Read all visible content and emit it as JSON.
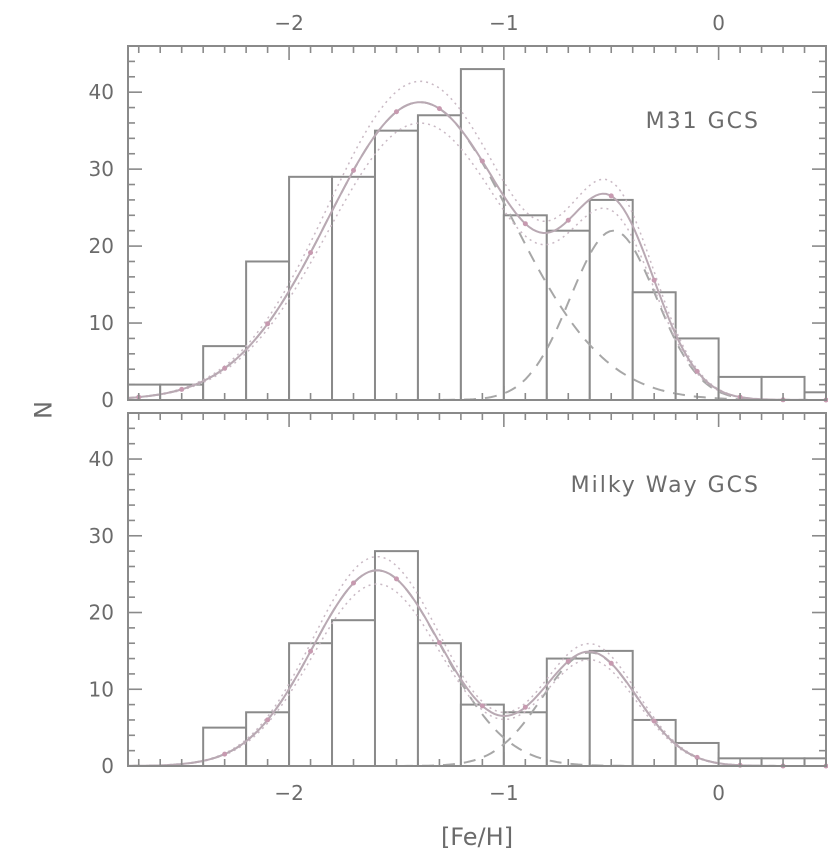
{
  "chart_data": {
    "type": "histogram",
    "xlabel": "[Fe/H]",
    "ylabel": "N",
    "xlim": [
      -2.75,
      0.5
    ],
    "ylim": [
      0,
      46
    ],
    "x_ticks": [
      -2,
      -1,
      0
    ],
    "x_tick_labels": [
      "−2",
      "−1",
      "0"
    ],
    "y_ticks": [
      0,
      10,
      20,
      30,
      40
    ],
    "y_tick_labels": [
      "0",
      "10",
      "20",
      "30",
      "40"
    ],
    "bin_width": 0.2,
    "grid": false,
    "panels": [
      {
        "label": "M31 GCS",
        "bins": [
          {
            "x": -2.7,
            "n": 2
          },
          {
            "x": -2.5,
            "n": 2
          },
          {
            "x": -2.3,
            "n": 7
          },
          {
            "x": -2.1,
            "n": 18
          },
          {
            "x": -1.9,
            "n": 29
          },
          {
            "x": -1.7,
            "n": 29
          },
          {
            "x": -1.5,
            "n": 35
          },
          {
            "x": -1.3,
            "n": 37
          },
          {
            "x": -1.1,
            "n": 43
          },
          {
            "x": -0.9,
            "n": 24
          },
          {
            "x": -0.7,
            "n": 22
          },
          {
            "x": -0.5,
            "n": 26
          },
          {
            "x": -0.3,
            "n": 14
          },
          {
            "x": -0.1,
            "n": 8
          },
          {
            "x": 0.1,
            "n": 3
          },
          {
            "x": 0.3,
            "n": 3
          },
          {
            "x": 0.5,
            "n": 1
          }
        ],
        "components": [
          {
            "mu": -1.39,
            "sigma": 0.43,
            "amp": 38.7
          },
          {
            "mu": -0.49,
            "sigma": 0.2,
            "amp": 22
          }
        ]
      },
      {
        "label": "Milky Way GCS",
        "bins": [
          {
            "x": -2.3,
            "n": 5
          },
          {
            "x": -2.1,
            "n": 7
          },
          {
            "x": -1.9,
            "n": 16
          },
          {
            "x": -1.7,
            "n": 19
          },
          {
            "x": -1.5,
            "n": 28
          },
          {
            "x": -1.3,
            "n": 16
          },
          {
            "x": -1.1,
            "n": 8
          },
          {
            "x": -0.9,
            "n": 7
          },
          {
            "x": -0.7,
            "n": 14
          },
          {
            "x": -0.5,
            "n": 15
          },
          {
            "x": -0.3,
            "n": 6
          },
          {
            "x": -0.1,
            "n": 3
          },
          {
            "x": 0.1,
            "n": 1
          },
          {
            "x": 0.3,
            "n": 1
          },
          {
            "x": 0.5,
            "n": 1
          }
        ],
        "components": [
          {
            "mu": -1.59,
            "sigma": 0.3,
            "amp": 25.5
          },
          {
            "mu": -0.6,
            "sigma": 0.22,
            "amp": 14.8
          }
        ]
      }
    ]
  }
}
